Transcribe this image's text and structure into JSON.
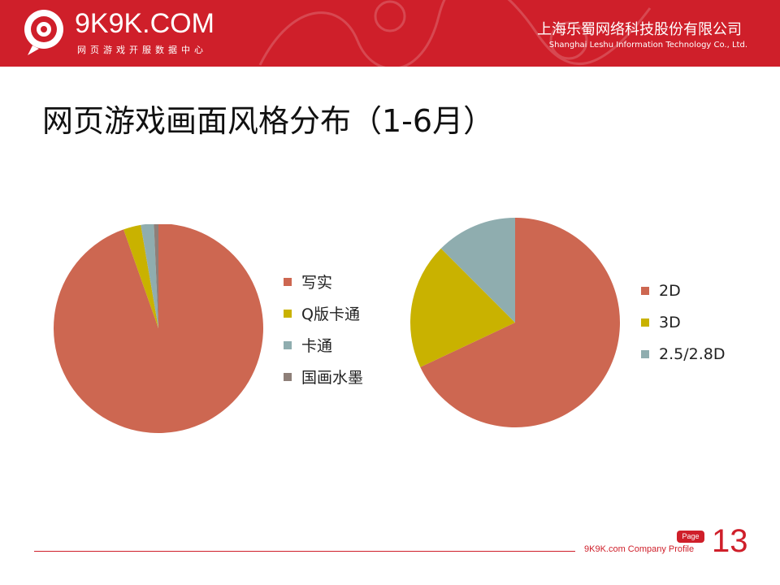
{
  "header": {
    "logo_text": "9K9K.COM",
    "logo_sub": "网页游戏开服数据中心",
    "company_cn": "上海乐蜀网络科技股份有限公司",
    "company_en": "Shanghai Leshu Information Technology Co., Ltd."
  },
  "slide": {
    "title": "网页游戏画面风格分布（1-6月）"
  },
  "footer": {
    "text": "9K9K.com Company Profile",
    "page_label": "Page",
    "page_number": "13"
  },
  "colors": {
    "brand": "#cf1f2a",
    "red": "#cd6751",
    "yellow": "#c9b200",
    "teal": "#8fadaf",
    "brown": "#8e7f78"
  },
  "chart_data": [
    {
      "type": "pie",
      "title": "",
      "categories": [
        "写实",
        "Q版卡通",
        "卡通",
        "国画水墨"
      ],
      "values": [
        94.6,
        2.7,
        2.0,
        0.7
      ],
      "colors": [
        "#cd6751",
        "#c9b200",
        "#8fadaf",
        "#8e7f78"
      ],
      "legend_position": "right"
    },
    {
      "type": "pie",
      "title": "",
      "categories": [
        "2D",
        "3D",
        "2.5/2.8D"
      ],
      "values": [
        68,
        19.5,
        12.5
      ],
      "colors": [
        "#cd6751",
        "#c9b200",
        "#8fadaf"
      ],
      "legend_position": "right"
    }
  ]
}
